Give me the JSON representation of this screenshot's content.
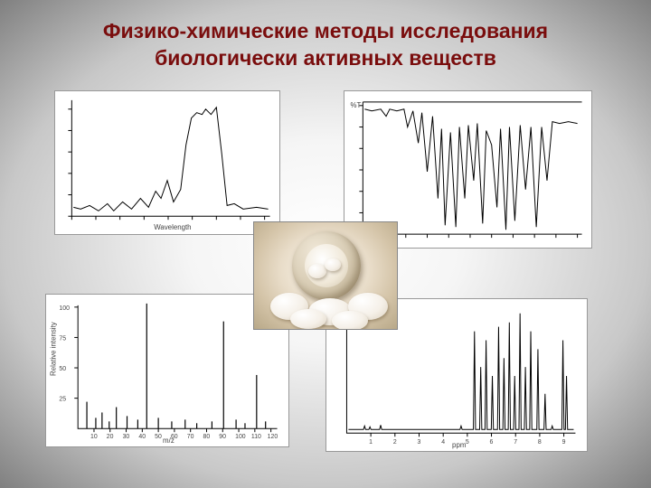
{
  "title_line1": "Физико-химические методы исследования",
  "title_line2": "биологически активных веществ",
  "title_color": "#7a0d0d",
  "charts": {
    "uv": {
      "xlabel": "Wavelength",
      "points": [
        [
          20,
          130
        ],
        [
          28,
          132
        ],
        [
          38,
          128
        ],
        [
          48,
          134
        ],
        [
          58,
          126
        ],
        [
          65,
          134
        ],
        [
          75,
          124
        ],
        [
          85,
          132
        ],
        [
          95,
          120
        ],
        [
          104,
          130
        ],
        [
          112,
          112
        ],
        [
          118,
          120
        ],
        [
          125,
          100
        ],
        [
          132,
          124
        ],
        [
          140,
          110
        ],
        [
          146,
          60
        ],
        [
          152,
          30
        ],
        [
          158,
          24
        ],
        [
          164,
          26
        ],
        [
          168,
          20
        ],
        [
          174,
          26
        ],
        [
          180,
          18
        ],
        [
          186,
          70
        ],
        [
          192,
          128
        ],
        [
          200,
          126
        ],
        [
          210,
          132
        ],
        [
          225,
          130
        ],
        [
          238,
          132
        ]
      ]
    },
    "ir": {
      "ylabel": "%T",
      "points": [
        [
          22,
          20
        ],
        [
          30,
          22
        ],
        [
          40,
          20
        ],
        [
          46,
          28
        ],
        [
          50,
          20
        ],
        [
          58,
          22
        ],
        [
          66,
          20
        ],
        [
          70,
          40
        ],
        [
          76,
          22
        ],
        [
          82,
          58
        ],
        [
          86,
          24
        ],
        [
          92,
          90
        ],
        [
          98,
          28
        ],
        [
          104,
          120
        ],
        [
          108,
          42
        ],
        [
          112,
          150
        ],
        [
          118,
          46
        ],
        [
          124,
          152
        ],
        [
          128,
          40
        ],
        [
          134,
          120
        ],
        [
          138,
          38
        ],
        [
          144,
          100
        ],
        [
          148,
          36
        ],
        [
          154,
          148
        ],
        [
          158,
          44
        ],
        [
          164,
          60
        ],
        [
          170,
          130
        ],
        [
          174,
          42
        ],
        [
          180,
          155
        ],
        [
          184,
          40
        ],
        [
          190,
          145
        ],
        [
          196,
          38
        ],
        [
          202,
          110
        ],
        [
          208,
          40
        ],
        [
          214,
          152
        ],
        [
          220,
          40
        ],
        [
          226,
          100
        ],
        [
          232,
          34
        ],
        [
          240,
          36
        ],
        [
          250,
          34
        ],
        [
          260,
          36
        ]
      ]
    },
    "ms": {
      "xlabel": "m/z",
      "ylabel": "Relative intensity",
      "xticks": [
        "10",
        "20",
        "30",
        "40",
        "50",
        "60",
        "70",
        "80",
        "90",
        "100",
        "110",
        "120"
      ],
      "yticks": [
        "25",
        "50",
        "75",
        "100"
      ],
      "peaks": [
        [
          45,
          30
        ],
        [
          55,
          12
        ],
        [
          62,
          18
        ],
        [
          70,
          8
        ],
        [
          78,
          24
        ],
        [
          90,
          14
        ],
        [
          102,
          10
        ],
        [
          112,
          140
        ],
        [
          125,
          12
        ],
        [
          140,
          8
        ],
        [
          155,
          10
        ],
        [
          168,
          6
        ],
        [
          185,
          8
        ],
        [
          198,
          120
        ],
        [
          212,
          10
        ],
        [
          222,
          6
        ],
        [
          235,
          60
        ],
        [
          245,
          8
        ]
      ]
    },
    "nmr": {
      "xlabel": "ppm",
      "xticks": [
        "1",
        "2",
        "3",
        "4",
        "5",
        "6",
        "7",
        "8",
        "9"
      ],
      "baseline": 146,
      "peaks": [
        [
          42,
          4
        ],
        [
          48,
          3
        ],
        [
          60,
          5
        ],
        [
          150,
          4
        ],
        [
          165,
          110
        ],
        [
          172,
          70
        ],
        [
          178,
          100
        ],
        [
          185,
          60
        ],
        [
          192,
          115
        ],
        [
          198,
          80
        ],
        [
          204,
          120
        ],
        [
          210,
          60
        ],
        [
          216,
          130
        ],
        [
          222,
          70
        ],
        [
          228,
          110
        ],
        [
          236,
          90
        ],
        [
          244,
          40
        ],
        [
          252,
          4
        ],
        [
          264,
          100
        ],
        [
          268,
          60
        ]
      ]
    }
  }
}
